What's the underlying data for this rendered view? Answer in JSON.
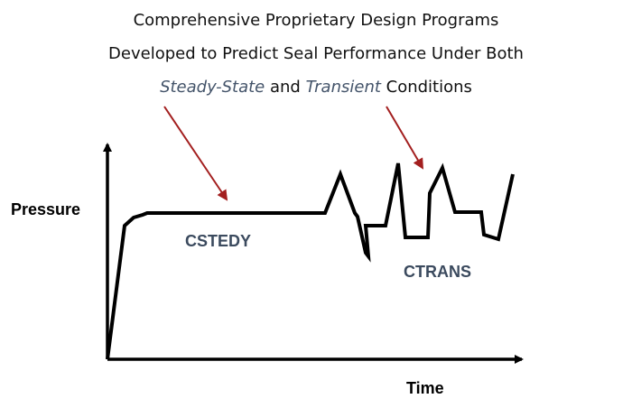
{
  "title": {
    "line1": "Comprehensive Proprietary Design Programs",
    "line2": "Developed to Predict Seal Performance Under Both",
    "line3": {
      "part1": "Steady-State",
      "part2": " and ",
      "part3": "Transient",
      "part4": " Conditions"
    }
  },
  "axes": {
    "y_label": "Pressure",
    "x_label": "Time"
  },
  "regions": {
    "steady_label": "CSTEDY",
    "transient_label": "CTRANS"
  },
  "colors": {
    "line": "#000000",
    "arrow": "#a31f1f",
    "region_label": "#3b4a5e",
    "italic_text": "#44546a"
  }
}
